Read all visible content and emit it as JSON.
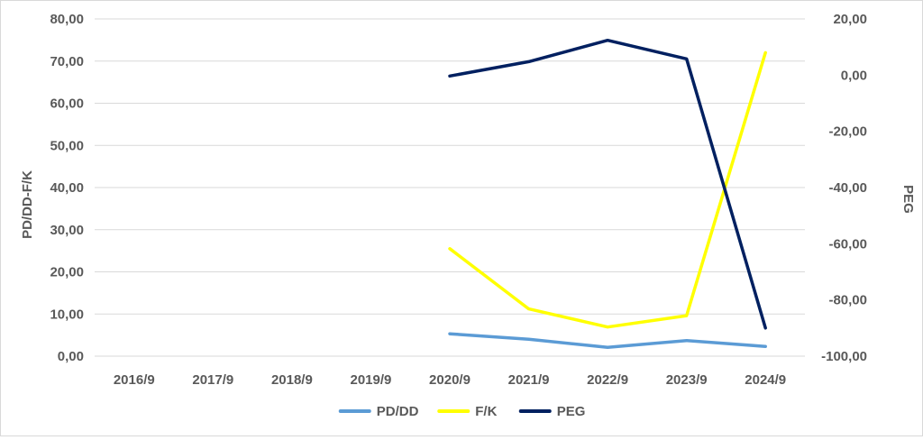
{
  "chart_data": {
    "type": "line",
    "title": "",
    "categories": [
      "2016/9",
      "2017/9",
      "2018/9",
      "2019/9",
      "2020/9",
      "2021/9",
      "2022/9",
      "2023/9",
      "2024/9"
    ],
    "y_left": {
      "label": "PD/DD-F/K",
      "range": [
        0,
        80
      ],
      "ticks": [
        "0,00",
        "10,00",
        "20,00",
        "30,00",
        "40,00",
        "50,00",
        "60,00",
        "70,00",
        "80,00"
      ]
    },
    "y_right": {
      "label": "PEG",
      "range": [
        -100,
        20
      ],
      "ticks": [
        "-100,00",
        "-80,00",
        "-60,00",
        "-40,00",
        "-20,00",
        "0,00",
        "20,00"
      ]
    },
    "grid": true,
    "legend_position": "bottom",
    "series": [
      {
        "name": "PD/DD",
        "axis": "left",
        "color": "#5b9bd5",
        "values": [
          null,
          null,
          null,
          null,
          5.3,
          4.0,
          2.1,
          3.7,
          2.3
        ]
      },
      {
        "name": "F/K",
        "axis": "left",
        "color": "#ffff00",
        "values": [
          null,
          null,
          null,
          null,
          25.5,
          11.2,
          6.9,
          9.6,
          72.0
        ]
      },
      {
        "name": "PEG",
        "axis": "right",
        "color": "#002060",
        "values": [
          null,
          null,
          null,
          null,
          -0.3,
          4.8,
          12.4,
          5.8,
          -90.0
        ]
      }
    ]
  }
}
